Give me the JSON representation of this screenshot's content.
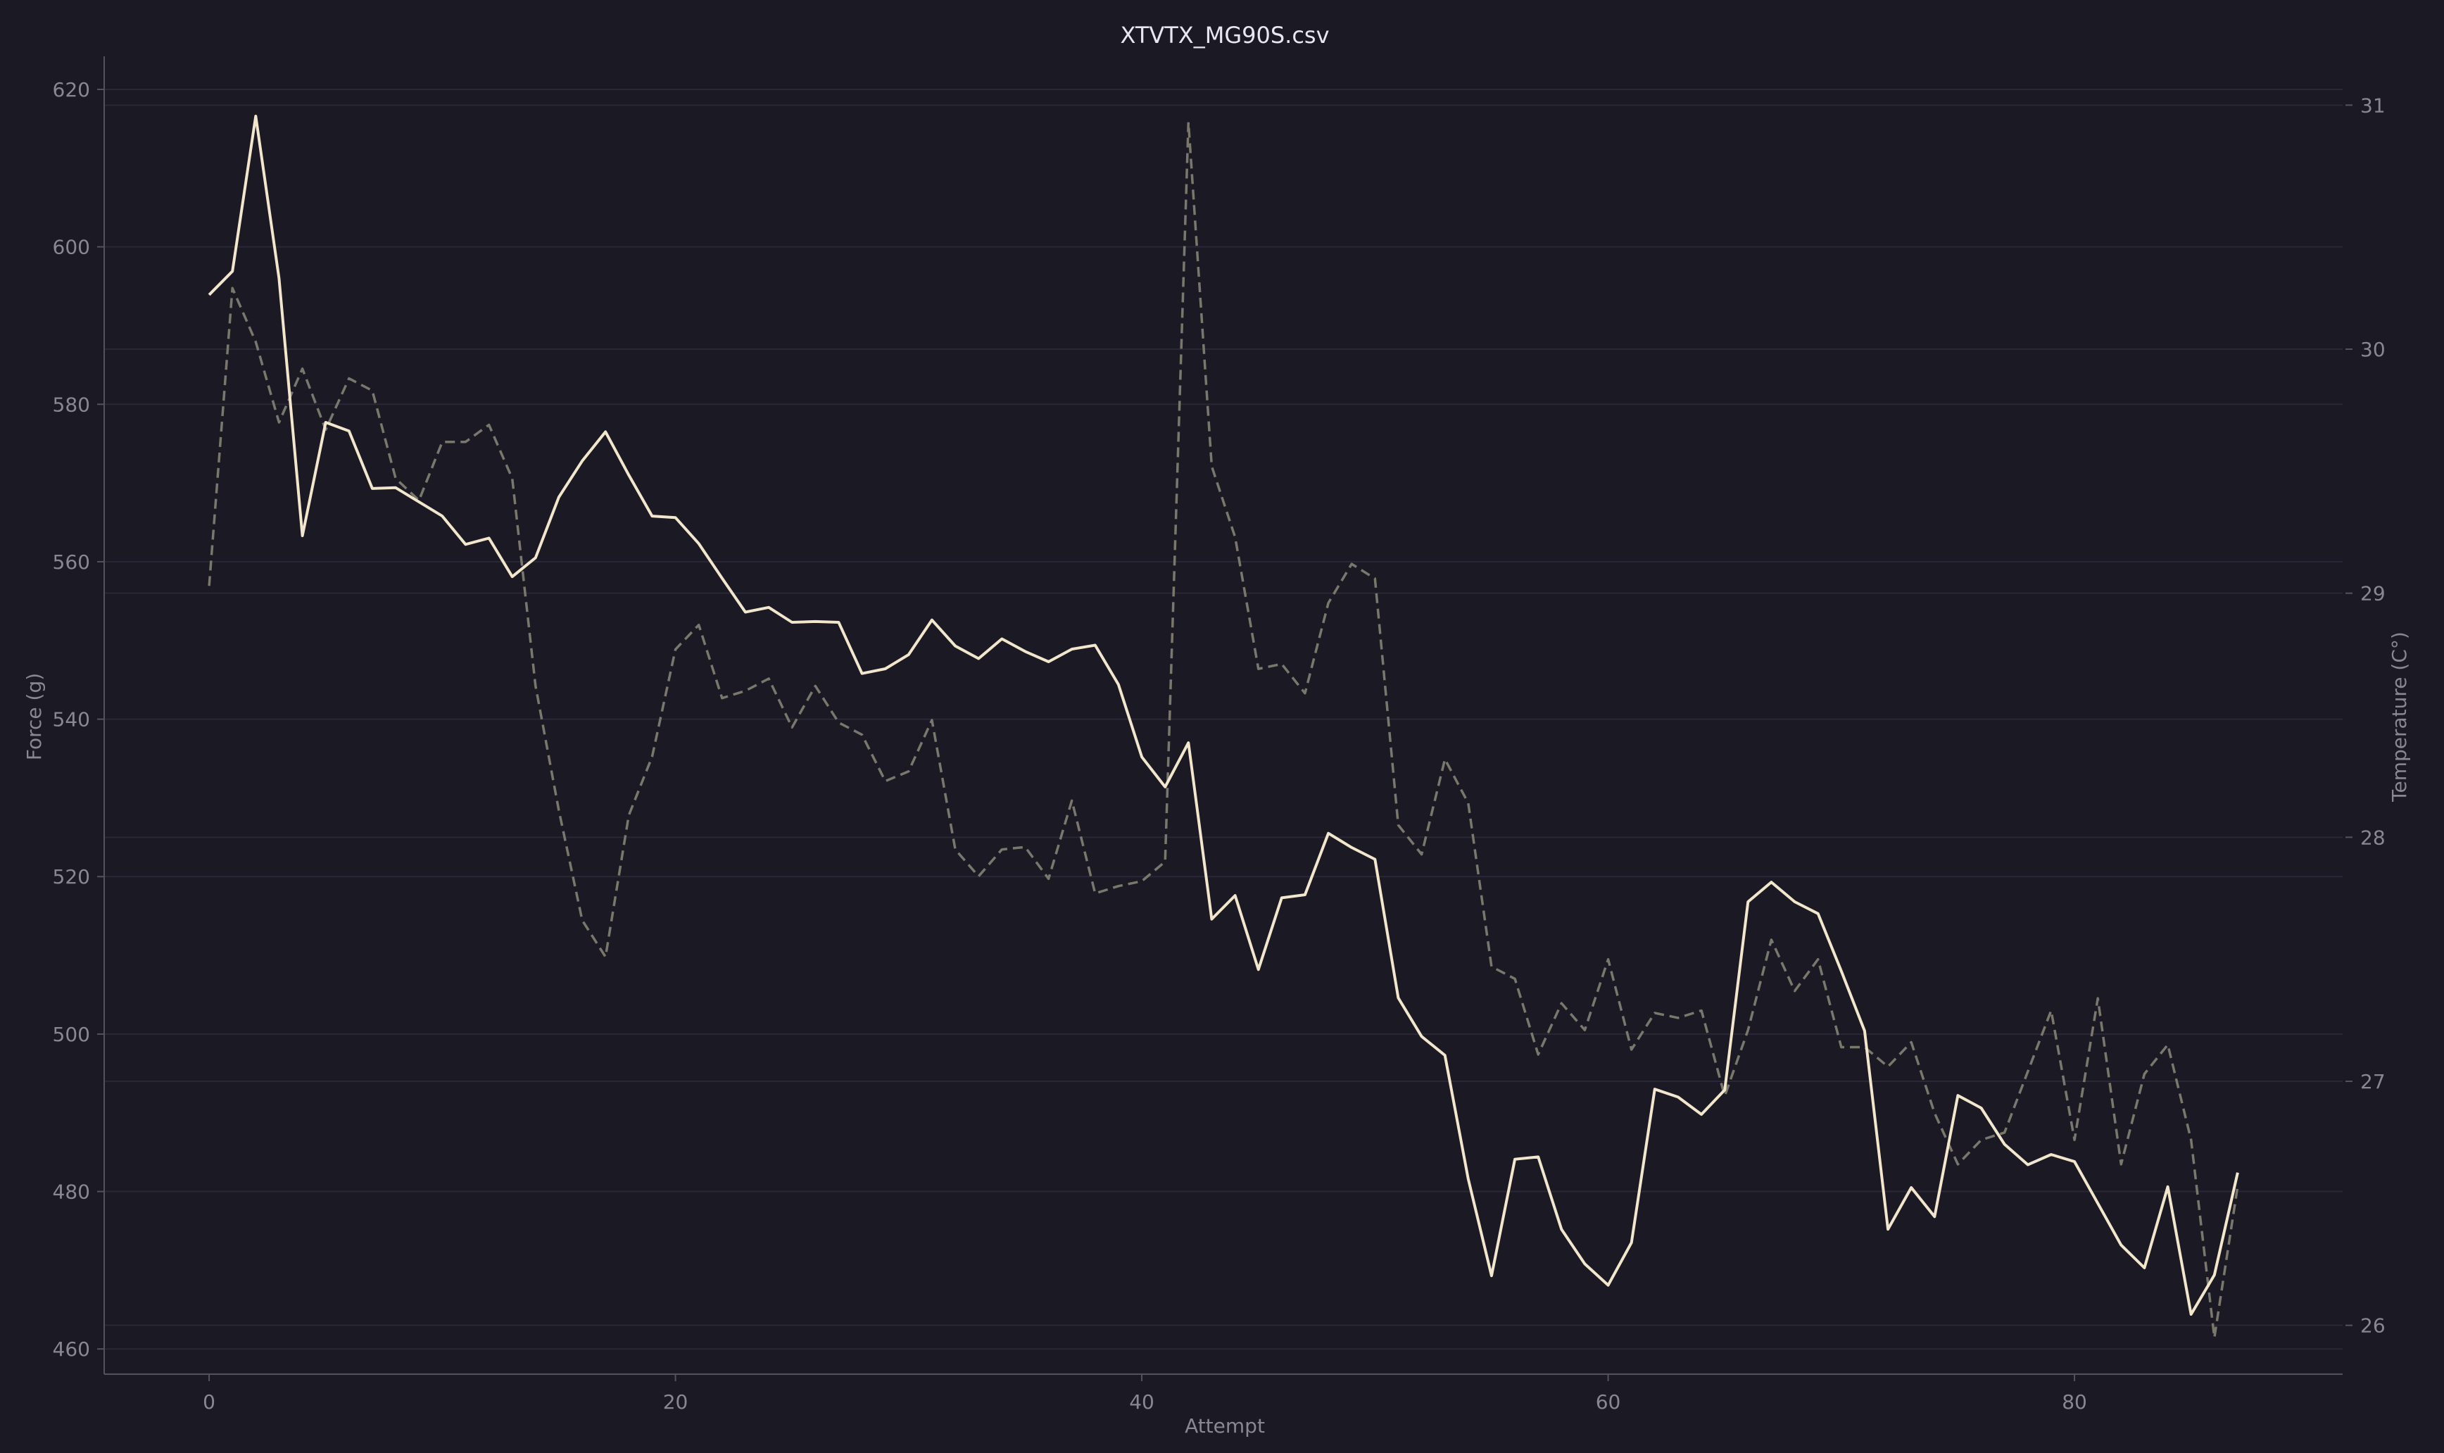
{
  "colors": {
    "background": "#1b1924",
    "grid": "#2a2836",
    "axis": "#55525f",
    "tick_text": "#8a8794",
    "title_text": "#e8e6ee",
    "force_line": "#f2e6cc",
    "temperature_line": "#7a786c"
  },
  "chart_data": {
    "type": "line",
    "title": "XTVTX_MG90S.csv",
    "xlabel": "Attempt",
    "ylabel": "Force (g)",
    "y2label": "Temperature (C°)",
    "xlim": [
      -4.5,
      91.5
    ],
    "ylim": [
      456.8,
      624.2
    ],
    "y2lim": [
      25.8,
      31.2
    ],
    "xticks": [
      0,
      20,
      40,
      60,
      80
    ],
    "yticks": [
      460,
      480,
      500,
      520,
      540,
      560,
      580,
      600,
      620
    ],
    "y2ticks": [
      26,
      27,
      28,
      29,
      30,
      31
    ],
    "grid": true,
    "legend": "none",
    "x": [
      0,
      1,
      2,
      3,
      4,
      5,
      6,
      7,
      8,
      9,
      10,
      11,
      12,
      13,
      14,
      15,
      16,
      17,
      18,
      19,
      20,
      21,
      22,
      23,
      24,
      25,
      26,
      27,
      28,
      29,
      30,
      31,
      32,
      33,
      34,
      35,
      36,
      37,
      38,
      39,
      40,
      41,
      42,
      43,
      44,
      45,
      46,
      47,
      48,
      49,
      50,
      51,
      52,
      53,
      54,
      55,
      56,
      57,
      58,
      59,
      60,
      61,
      62,
      63,
      64,
      65,
      66,
      67,
      68,
      69,
      70,
      71,
      72,
      73,
      74,
      75,
      76,
      77,
      78,
      79,
      80,
      81,
      82,
      83,
      84,
      85,
      86,
      87
    ],
    "series": [
      {
        "axis": "left",
        "style": "solid",
        "values": [
          593.9,
          596.9,
          616.6,
          596.0,
          563.3,
          577.7,
          576.6,
          569.3,
          569.4,
          567.6,
          565.8,
          562.2,
          563.0,
          558.1,
          560.5,
          568.2,
          572.8,
          576.5,
          571.0,
          565.8,
          565.6,
          562.3,
          557.9,
          553.6,
          554.2,
          552.3,
          552.4,
          552.3,
          545.8,
          546.4,
          548.2,
          552.6,
          549.3,
          547.7,
          550.2,
          548.6,
          547.3,
          548.9,
          549.4,
          544.4,
          535.2,
          531.4,
          537.0,
          514.6,
          517.6,
          508.2,
          517.3,
          517.7,
          525.5,
          523.7,
          522.2,
          504.6,
          499.7,
          497.3,
          481.6,
          469.3,
          484.1,
          484.4,
          475.2,
          470.8,
          468.1,
          473.5,
          493.0,
          492.0,
          489.8,
          492.9,
          516.8,
          519.3,
          516.8,
          515.3,
          508.0,
          500.4,
          475.2,
          480.5,
          476.8,
          492.2,
          490.6,
          486.0,
          483.4,
          484.7,
          483.8,
          478.5,
          473.2,
          470.3,
          480.6,
          464.4,
          469.4,
          482.4
        ]
      },
      {
        "axis": "right",
        "style": "dashed",
        "values": [
          29.03,
          30.25,
          30.03,
          29.7,
          29.92,
          29.67,
          29.88,
          29.83,
          29.47,
          29.38,
          29.62,
          29.62,
          29.69,
          29.47,
          28.62,
          28.11,
          27.66,
          27.51,
          28.09,
          28.33,
          28.77,
          28.87,
          28.57,
          28.6,
          28.65,
          28.45,
          28.62,
          28.47,
          28.42,
          28.23,
          28.27,
          28.48,
          27.95,
          27.84,
          27.95,
          27.96,
          27.83,
          28.15,
          27.77,
          27.8,
          27.82,
          27.9,
          30.93,
          29.52,
          29.23,
          28.69,
          28.71,
          28.59,
          28.96,
          29.12,
          29.06,
          28.05,
          27.93,
          28.32,
          28.14,
          27.47,
          27.42,
          27.11,
          27.32,
          27.21,
          27.5,
          27.13,
          27.28,
          27.26,
          27.29,
          26.94,
          27.21,
          27.58,
          27.37,
          27.5,
          27.14,
          27.14,
          27.06,
          27.16,
          26.87,
          26.66,
          26.76,
          26.79,
          27.04,
          27.29,
          26.76,
          27.34,
          26.66,
          27.03,
          27.15,
          26.76,
          25.95,
          26.57
        ]
      }
    ]
  }
}
